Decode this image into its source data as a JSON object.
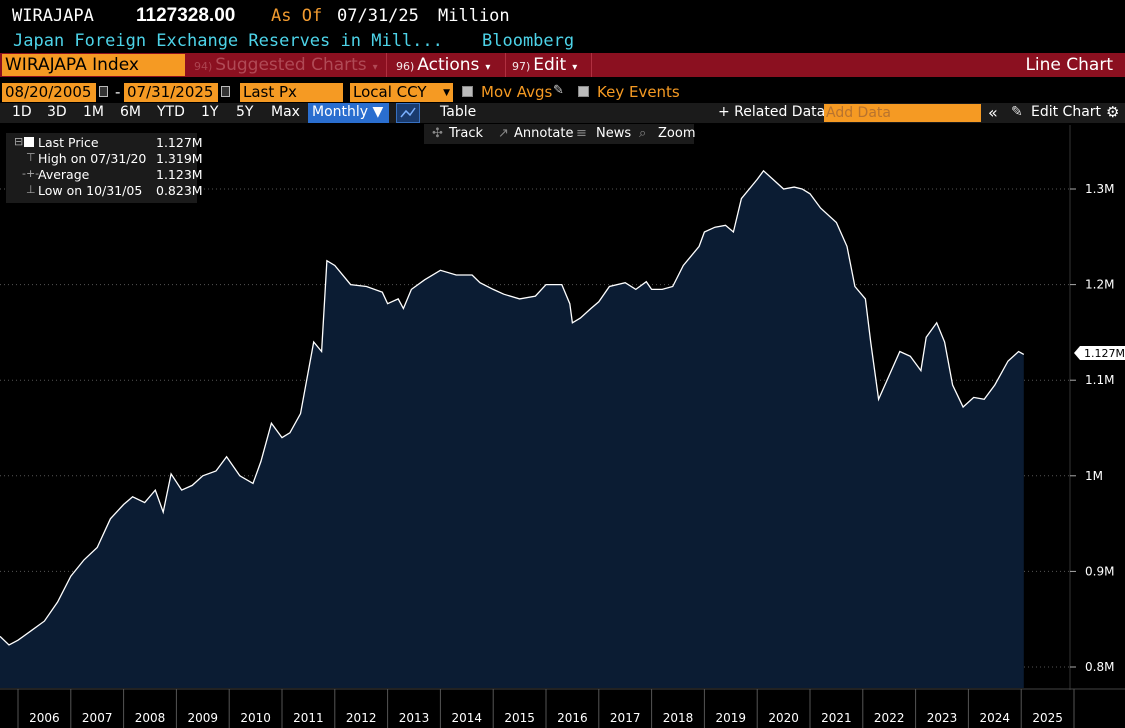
{
  "header": {
    "ticker": "WIRAJAPA",
    "last_value": "1127328.00",
    "as_of_label": "As Of",
    "as_of_date": "07/31/25",
    "units": "Million",
    "description": "Japan Foreign Exchange Reserves in Mill...",
    "source": "Bloomberg"
  },
  "menubar": {
    "index_field": "WIRAJAPA Index",
    "suggested": {
      "num": "94)",
      "label": "Suggested Charts"
    },
    "actions": {
      "num": "96)",
      "label": "Actions"
    },
    "edit": {
      "num": "97)",
      "label": "Edit"
    },
    "chart_type": "Line Chart"
  },
  "controls": {
    "start_date": "08/20/2005",
    "end_date": "07/31/2025",
    "field": "Last Px",
    "currency": "Local CCY",
    "mov_avgs": "Mov Avgs",
    "key_events": "Key Events"
  },
  "periods": [
    "1D",
    "3D",
    "1M",
    "6M",
    "YTD",
    "1Y",
    "5Y",
    "Max"
  ],
  "frequency": "Monthly",
  "table_label": "Table",
  "related_data": "+ Related Data",
  "add_data_placeholder": "Add Data",
  "edit_chart": "Edit Chart",
  "tools": {
    "track": "Track",
    "annotate": "Annotate",
    "news": "News",
    "zoom": "Zoom"
  },
  "legend": [
    {
      "label": "Last Price",
      "value": "1.127M"
    },
    {
      "label": "High on 07/31/20",
      "value": "1.319M"
    },
    {
      "label": "Average",
      "value": "1.123M"
    },
    {
      "label": "Low on 10/31/05",
      "value": "0.823M"
    }
  ],
  "last_badge": "1.127M",
  "colors": {
    "fill": "#0b1c33",
    "line": "#ffffff",
    "accent": "#f59a23",
    "red_bar": "#8b1020",
    "monthly": "#2a6ecf"
  },
  "chart_data": {
    "type": "area",
    "title": "Japan Foreign Exchange Reserves in Mill...",
    "ylim": [
      0.78,
      1.36
    ],
    "yticks": [
      0.8,
      0.9,
      1.0,
      1.1,
      1.2,
      1.3
    ],
    "ytick_labels": [
      "0.8M",
      "0.9M",
      "1M",
      "1.1M",
      "1.2M",
      "1.3M"
    ],
    "xtick_labels": [
      "2006",
      "2007",
      "2008",
      "2009",
      "2010",
      "2011",
      "2012",
      "2013",
      "2014",
      "2015",
      "2016",
      "2017",
      "2018",
      "2019",
      "2020",
      "2021",
      "2022",
      "2023",
      "2024",
      "2025"
    ],
    "grid": "horizontal-dotted",
    "points": [
      [
        "2005.58",
        0.832
      ],
      [
        "2005.83",
        0.823
      ],
      [
        "2006.0",
        0.828
      ],
      [
        "2006.25",
        0.838
      ],
      [
        "2006.5",
        0.848
      ],
      [
        "2006.75",
        0.868
      ],
      [
        "2007.0",
        0.895
      ],
      [
        "2007.25",
        0.912
      ],
      [
        "2007.5",
        0.925
      ],
      [
        "2007.75",
        0.955
      ],
      [
        "2008.0",
        0.97
      ],
      [
        "2008.17",
        0.978
      ],
      [
        "2008.4",
        0.972
      ],
      [
        "2008.6",
        0.985
      ],
      [
        "2008.75",
        0.962
      ],
      [
        "2008.9",
        1.002
      ],
      [
        "2009.1",
        0.985
      ],
      [
        "2009.3",
        0.99
      ],
      [
        "2009.5",
        1.0
      ],
      [
        "2009.75",
        1.005
      ],
      [
        "2009.95",
        1.02
      ],
      [
        "2010.2",
        1.0
      ],
      [
        "2010.45",
        0.992
      ],
      [
        "2010.6",
        1.015
      ],
      [
        "2010.8",
        1.055
      ],
      [
        "2011.0",
        1.04
      ],
      [
        "2011.15",
        1.045
      ],
      [
        "2011.35",
        1.065
      ],
      [
        "2011.6",
        1.14
      ],
      [
        "2011.75",
        1.13
      ],
      [
        "2011.85",
        1.225
      ],
      [
        "2012.0",
        1.22
      ],
      [
        "2012.3",
        1.2
      ],
      [
        "2012.6",
        1.198
      ],
      [
        "2012.9",
        1.192
      ],
      [
        "2013.0",
        1.18
      ],
      [
        "2013.2",
        1.185
      ],
      [
        "2013.3",
        1.175
      ],
      [
        "2013.45",
        1.195
      ],
      [
        "2013.7",
        1.205
      ],
      [
        "2014.0",
        1.215
      ],
      [
        "2014.3",
        1.21
      ],
      [
        "2014.6",
        1.21
      ],
      [
        "2014.75",
        1.202
      ],
      [
        "2015.0",
        1.195
      ],
      [
        "2015.2",
        1.19
      ],
      [
        "2015.5",
        1.185
      ],
      [
        "2015.8",
        1.188
      ],
      [
        "2016.0",
        1.2
      ],
      [
        "2016.3",
        1.2
      ],
      [
        "2016.45",
        1.18
      ],
      [
        "2016.5",
        1.16
      ],
      [
        "2016.65",
        1.165
      ],
      [
        "2016.85",
        1.175
      ],
      [
        "2017.0",
        1.182
      ],
      [
        "2017.2",
        1.198
      ],
      [
        "2017.5",
        1.202
      ],
      [
        "2017.7",
        1.195
      ],
      [
        "2017.9",
        1.203
      ],
      [
        "2018.0",
        1.195
      ],
      [
        "2018.2",
        1.195
      ],
      [
        "2018.4",
        1.198
      ],
      [
        "2018.6",
        1.22
      ],
      [
        "2018.9",
        1.24
      ],
      [
        "2019.0",
        1.255
      ],
      [
        "2019.2",
        1.26
      ],
      [
        "2019.4",
        1.262
      ],
      [
        "2019.55",
        1.255
      ],
      [
        "2019.7",
        1.29
      ],
      [
        "2020.0",
        1.31
      ],
      [
        "2020.12",
        1.319
      ],
      [
        "2020.3",
        1.31
      ],
      [
        "2020.5",
        1.3
      ],
      [
        "2020.7",
        1.302
      ],
      [
        "2020.85",
        1.3
      ],
      [
        "2021.0",
        1.295
      ],
      [
        "2021.2",
        1.28
      ],
      [
        "2021.5",
        1.265
      ],
      [
        "2021.7",
        1.24
      ],
      [
        "2021.85",
        1.198
      ],
      [
        "2022.05",
        1.185
      ],
      [
        "2022.15",
        1.14
      ],
      [
        "2022.3",
        1.08
      ],
      [
        "2022.5",
        1.105
      ],
      [
        "2022.7",
        1.13
      ],
      [
        "2022.9",
        1.125
      ],
      [
        "2023.1",
        1.11
      ],
      [
        "2023.2",
        1.145
      ],
      [
        "2023.4",
        1.16
      ],
      [
        "2023.55",
        1.14
      ],
      [
        "2023.7",
        1.095
      ],
      [
        "2023.9",
        1.072
      ],
      [
        "2024.1",
        1.082
      ],
      [
        "2024.3",
        1.08
      ],
      [
        "2024.5",
        1.095
      ],
      [
        "2024.75",
        1.12
      ],
      [
        "2024.95",
        1.13
      ],
      [
        "2025.05",
        1.127
      ]
    ]
  }
}
